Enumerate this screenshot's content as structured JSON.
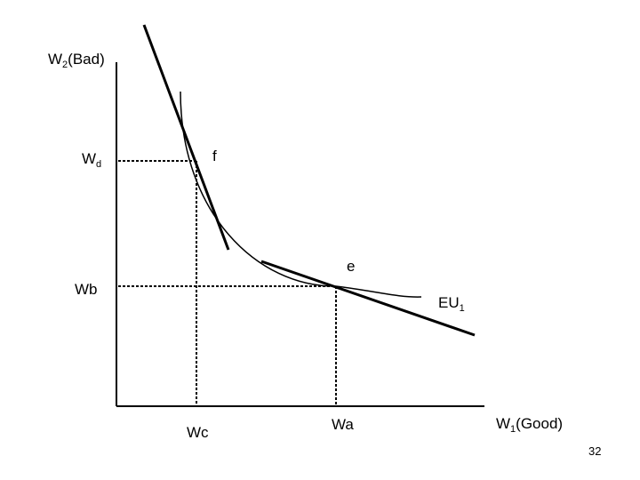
{
  "diagram": {
    "axes": {
      "y_label": {
        "main": "W",
        "sub": "2",
        "rest": "(Bad)"
      },
      "x_label": {
        "main": "W",
        "sub": "1",
        "rest": "(Good)"
      }
    },
    "y_ticks": {
      "wd": {
        "main": "W",
        "sub": "d"
      },
      "wb": "Wb"
    },
    "x_ticks": {
      "wc": "Wc",
      "wa": "Wa"
    },
    "points": {
      "f": "f",
      "e": "e"
    },
    "curve_label": {
      "main": "EU",
      "sub": "1"
    }
  },
  "page_number": "32",
  "colors": {
    "ink": "#000000",
    "background": "#ffffff"
  }
}
